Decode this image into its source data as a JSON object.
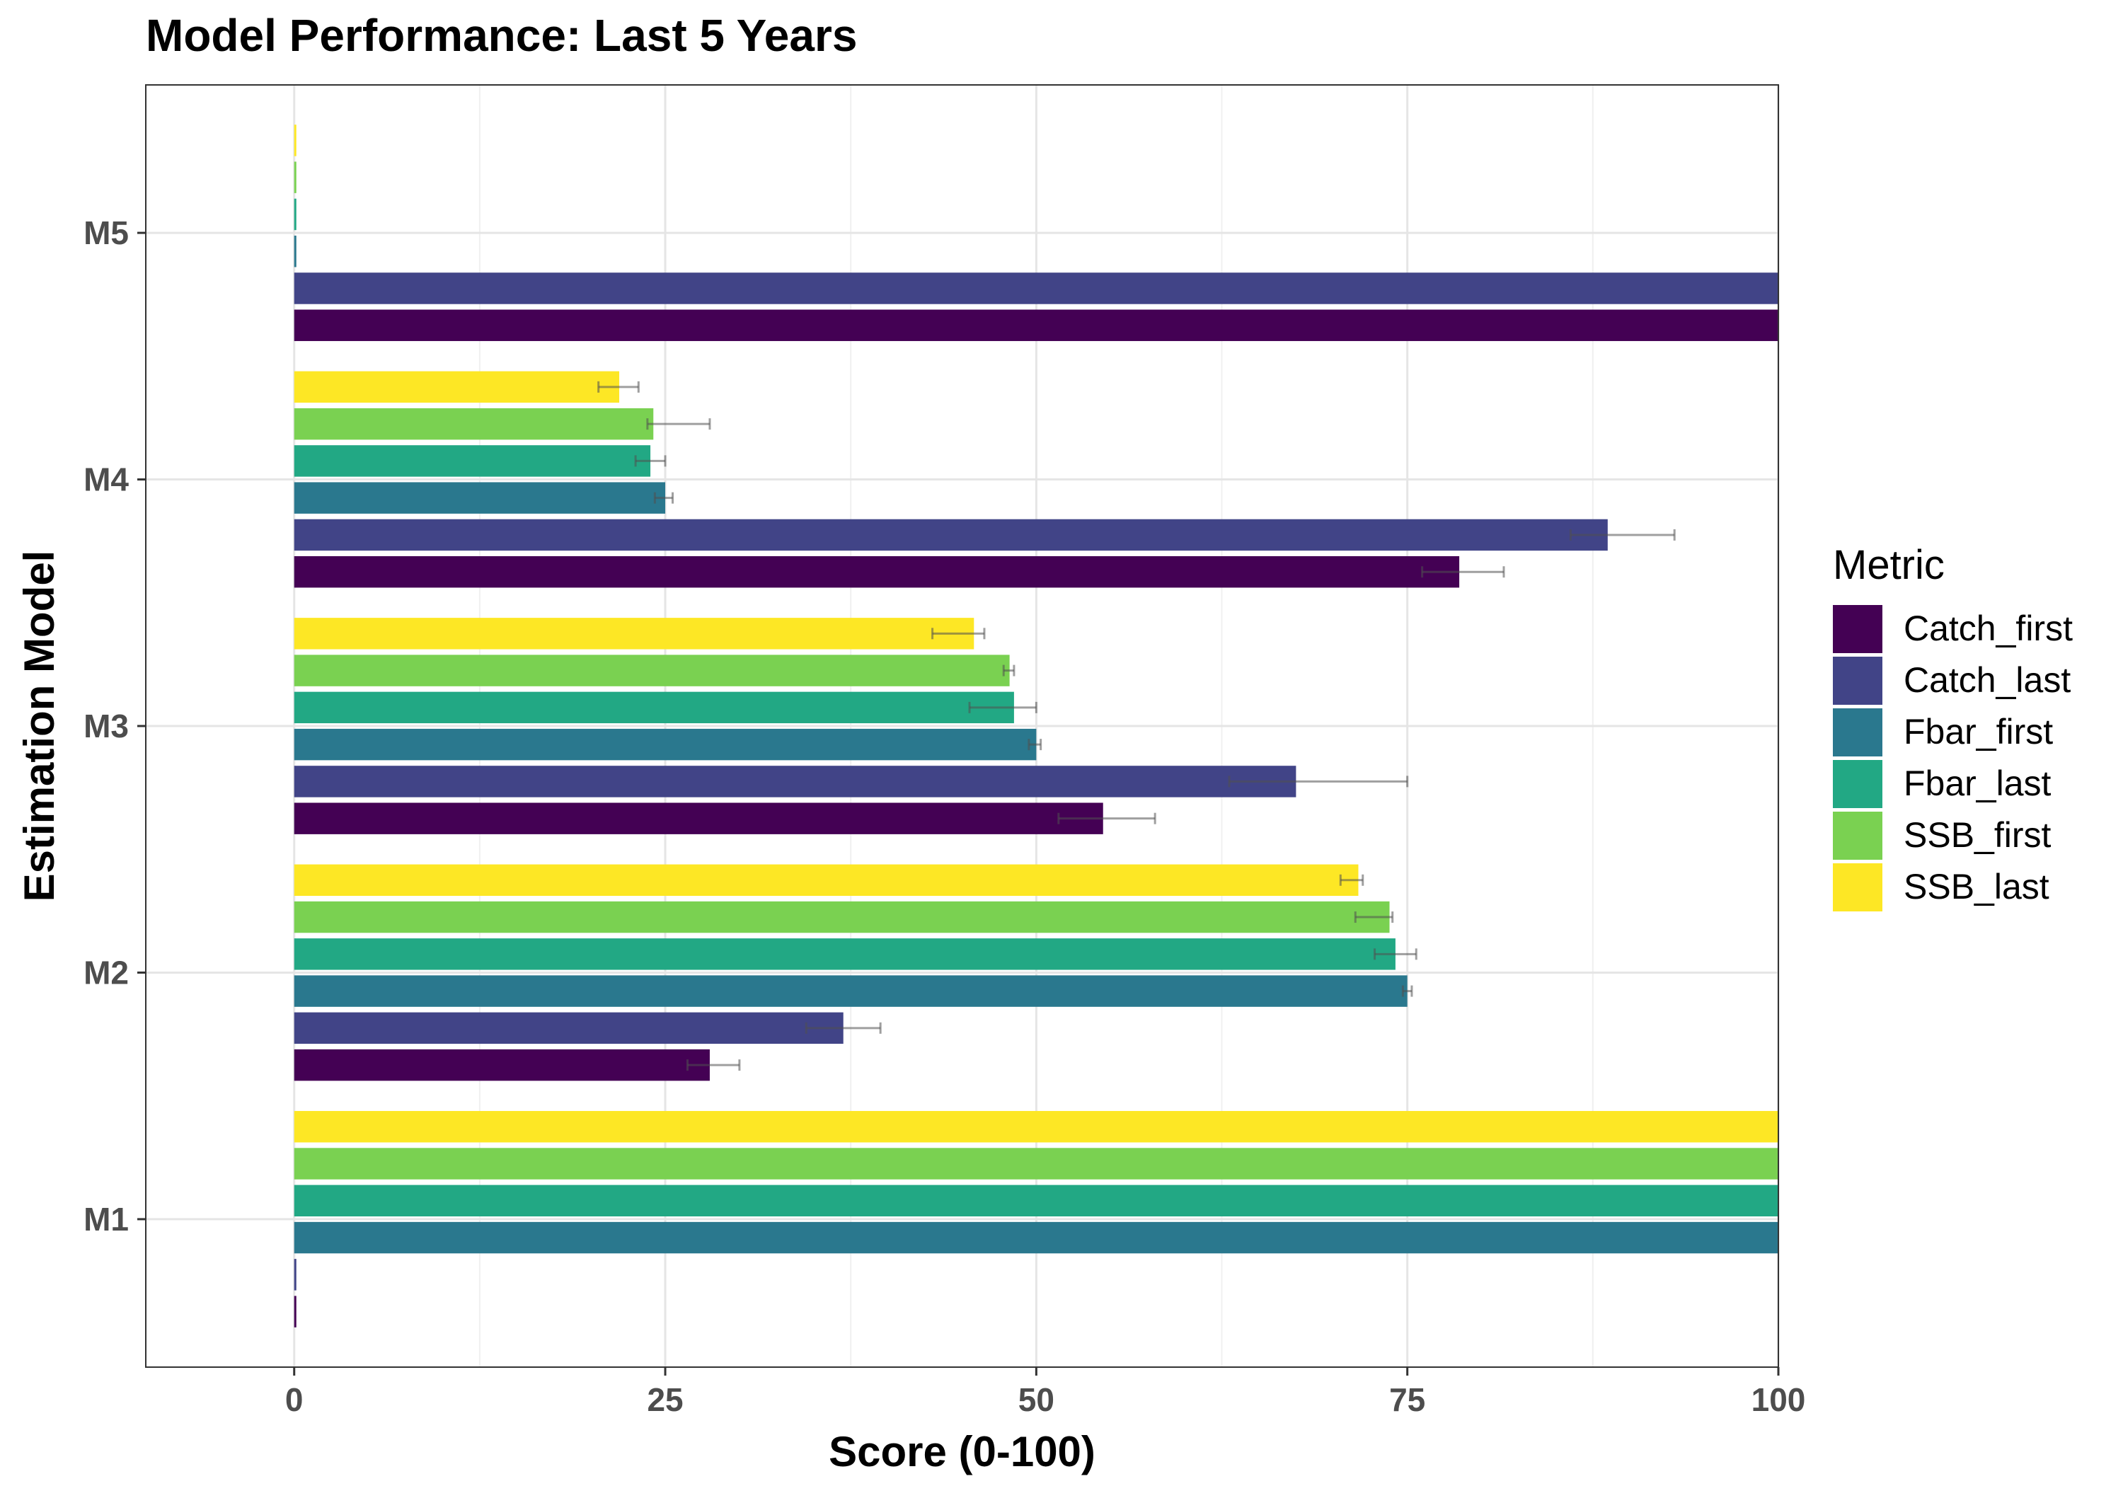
{
  "chart_data": {
    "type": "bar",
    "orientation": "horizontal",
    "title": "Model Performance: Last 5 Years",
    "xlabel": "Score (0-100)",
    "ylabel": "Estimation Model",
    "xlim": [
      -10,
      100
    ],
    "x_ticks": [
      0,
      25,
      50,
      75,
      100
    ],
    "categories": [
      "M1",
      "M2",
      "M3",
      "M4",
      "M5"
    ],
    "grid": true,
    "legend": {
      "title": "Metric",
      "position": "right"
    },
    "series": [
      {
        "name": "Catch_first",
        "color": "#440154",
        "values": [
          0,
          28,
          54.5,
          78.5,
          100
        ],
        "errors": [
          [
            0,
            0
          ],
          [
            26.5,
            30
          ],
          [
            51.5,
            58
          ],
          [
            76,
            81.5
          ],
          [
            100,
            100
          ]
        ]
      },
      {
        "name": "Catch_last",
        "color": "#414487",
        "values": [
          0,
          37,
          67.5,
          88.5,
          100
        ],
        "errors": [
          [
            0,
            0
          ],
          [
            34.5,
            39.5
          ],
          [
            63,
            75
          ],
          [
            86,
            93
          ],
          [
            100,
            100
          ]
        ]
      },
      {
        "name": "Fbar_first",
        "color": "#2A788E",
        "values": [
          100,
          75,
          50,
          25,
          0
        ],
        "errors": [
          [
            100,
            100
          ],
          [
            74.7,
            75.3
          ],
          [
            49.5,
            50.3
          ],
          [
            24.3,
            25.5
          ],
          [
            0,
            0
          ]
        ]
      },
      {
        "name": "Fbar_last",
        "color": "#22A884",
        "values": [
          100,
          74.2,
          48.5,
          24,
          0
        ],
        "errors": [
          [
            100,
            100
          ],
          [
            72.8,
            75.6
          ],
          [
            45.5,
            50
          ],
          [
            23,
            25
          ],
          [
            0,
            0
          ]
        ]
      },
      {
        "name": "SSB_first",
        "color": "#7AD151",
        "values": [
          100,
          73.8,
          48.2,
          24.2,
          0
        ],
        "errors": [
          [
            100,
            100
          ],
          [
            71.5,
            74
          ],
          [
            47.8,
            48.5
          ],
          [
            23.8,
            28
          ],
          [
            0,
            0
          ]
        ]
      },
      {
        "name": "SSB_last",
        "color": "#FDE725",
        "values": [
          100,
          71.7,
          45.8,
          21.9,
          0
        ],
        "errors": [
          [
            100,
            100
          ],
          [
            70.5,
            72
          ],
          [
            43,
            46.5
          ],
          [
            20.5,
            23.2
          ],
          [
            0,
            0
          ]
        ]
      }
    ]
  }
}
